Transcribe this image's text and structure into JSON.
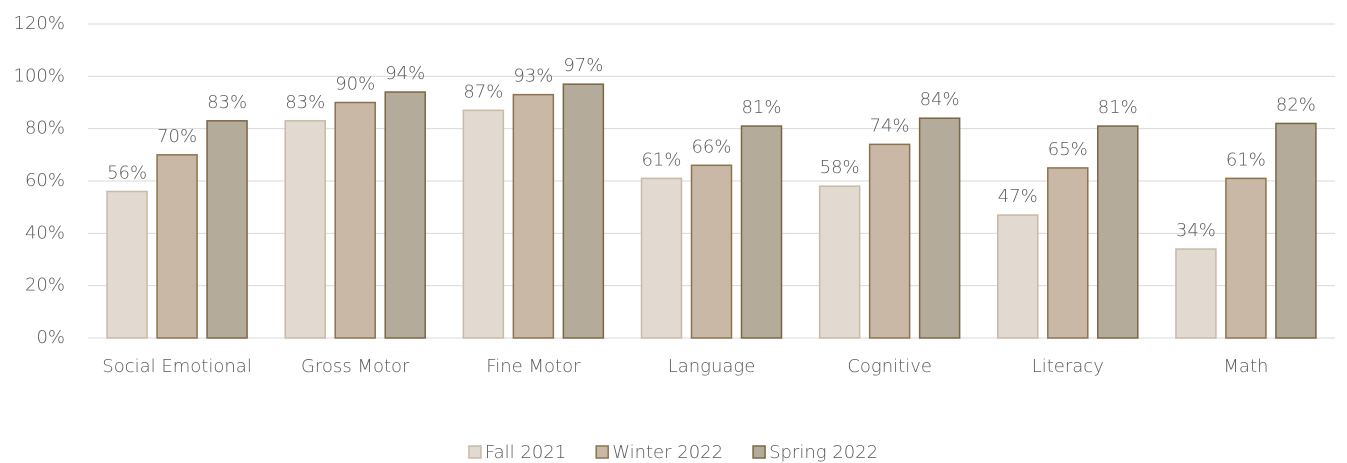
{
  "chart_data": {
    "type": "bar",
    "categories": [
      "Social Emotional",
      "Gross Motor",
      "Fine Motor",
      "Language",
      "Cognitive",
      "Literacy",
      "Math"
    ],
    "series": [
      {
        "name": "Fall 2021",
        "color": "#e2d9d0",
        "stroke": "#c9b9a6",
        "values": [
          56,
          83,
          87,
          61,
          58,
          47,
          34
        ],
        "value_labels": [
          "56%",
          "83%",
          "87%",
          "61%",
          "58%",
          "47%",
          "34%"
        ]
      },
      {
        "name": "Winter 2022",
        "color": "#c8b8a5",
        "stroke": "#8b7350",
        "values": [
          70,
          90,
          93,
          66,
          74,
          65,
          61
        ],
        "value_labels": [
          "70%",
          "90%",
          "93%",
          "66%",
          "74%",
          "65%",
          "61%"
        ]
      },
      {
        "name": "Spring 2022",
        "color": "#b5ab9b",
        "stroke": "#7a6645",
        "values": [
          83,
          94,
          97,
          81,
          84,
          81,
          82
        ],
        "value_labels": [
          "83%",
          "94%",
          "97%",
          "81%",
          "84%",
          "81%",
          "82%"
        ]
      }
    ],
    "ylim": [
      0,
      120
    ],
    "yticks": [
      {
        "value": 0,
        "label": "0%"
      },
      {
        "value": 20,
        "label": "20%"
      },
      {
        "value": 40,
        "label": "40%"
      },
      {
        "value": 60,
        "label": "60%"
      },
      {
        "value": 80,
        "label": "80%"
      },
      {
        "value": 100,
        "label": "100%"
      },
      {
        "value": 120,
        "label": "120%"
      }
    ],
    "grid": true,
    "legend": "bottom"
  }
}
